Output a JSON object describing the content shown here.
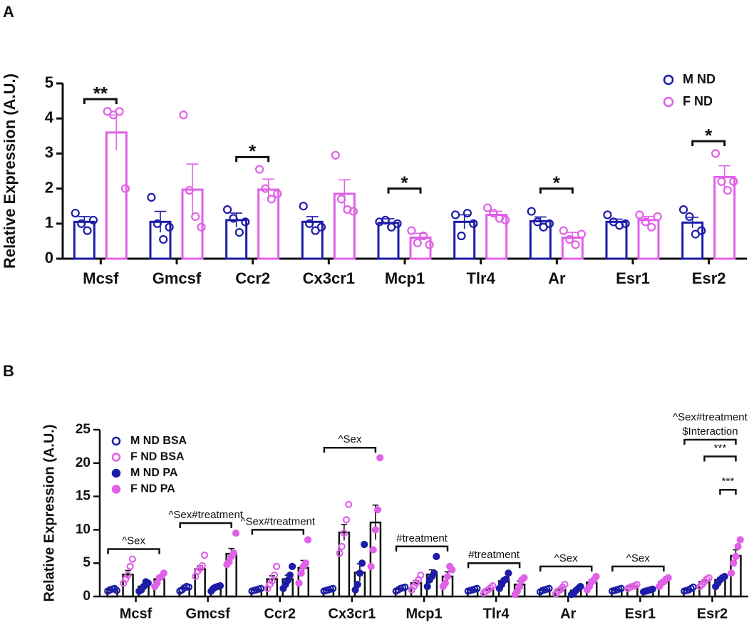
{
  "chart_data": [
    {
      "type": "bar",
      "panel": "A",
      "ylabel": "Relative Expression (A.U.)",
      "categories": [
        "Mcsf",
        "Gmcsf",
        "Ccr2",
        "Cx3cr1",
        "Mcp1",
        "Tlr4",
        "Ar",
        "Esr1",
        "Esr2"
      ],
      "ylim": [
        0,
        5
      ],
      "yticks": [
        0,
        1,
        2,
        3,
        4,
        5
      ],
      "legend": "upper right",
      "bar_edgecolor": "series",
      "series": [
        {
          "name": "M ND",
          "color": "#1c1ca8",
          "marker": "open",
          "values": [
            1.05,
            1.05,
            1.1,
            1.05,
            1.02,
            1.05,
            1.07,
            1.05,
            1.03
          ],
          "errors": [
            0.15,
            0.3,
            0.2,
            0.15,
            0.12,
            0.2,
            0.12,
            0.08,
            0.15
          ],
          "points": [
            [
              1.3,
              1.0,
              0.8,
              1.1
            ],
            [
              1.75,
              1.0,
              0.55,
              0.9
            ],
            [
              1.4,
              1.15,
              0.75,
              1.05
            ],
            [
              1.5,
              1.0,
              0.8,
              0.9
            ],
            [
              1.05,
              1.1,
              0.9,
              1.0
            ],
            [
              1.25,
              0.65,
              1.3,
              1.0
            ],
            [
              1.35,
              1.05,
              0.9,
              1.0
            ],
            [
              1.25,
              1.05,
              0.95,
              1.0
            ],
            [
              1.4,
              1.2,
              0.7,
              0.8
            ]
          ]
        },
        {
          "name": "F ND",
          "color": "#e060e8",
          "marker": "open",
          "values": [
            3.6,
            1.97,
            1.97,
            1.85,
            0.6,
            1.25,
            0.6,
            1.1,
            2.33
          ],
          "errors": [
            0.5,
            0.73,
            0.3,
            0.4,
            0.12,
            0.1,
            0.15,
            0.1,
            0.32
          ],
          "points": [
            [
              4.2,
              4.1,
              4.2,
              2.0
            ],
            [
              4.1,
              1.95,
              1.2,
              0.9
            ],
            [
              2.55,
              2.0,
              1.7,
              1.85
            ],
            [
              2.95,
              1.7,
              1.4,
              1.35
            ],
            [
              0.8,
              0.45,
              0.65,
              0.4
            ],
            [
              1.45,
              1.3,
              1.15,
              1.1
            ],
            [
              0.8,
              0.55,
              0.4,
              0.7
            ],
            [
              1.25,
              1.05,
              0.9,
              1.2
            ],
            [
              3.0,
              2.2,
              1.95,
              2.2
            ]
          ]
        }
      ],
      "annotations": [
        {
          "category": "Mcsf",
          "text": "**"
        },
        {
          "category": "Ccr2",
          "text": "*"
        },
        {
          "category": "Mcp1",
          "text": "*"
        },
        {
          "category": "Ar",
          "text": "*"
        },
        {
          "category": "Esr2",
          "text": "*"
        }
      ]
    },
    {
      "type": "bar",
      "panel": "B",
      "ylabel": "Relative Expression (A.U.)",
      "categories": [
        "Mcsf",
        "Gmcsf",
        "Ccr2",
        "Cx3cr1",
        "Mcp1",
        "Tlr4",
        "Ar",
        "Esr1",
        "Esr2"
      ],
      "ylim": [
        0,
        25
      ],
      "yticks": [
        0,
        5,
        10,
        15,
        20,
        25
      ],
      "legend": "upper left",
      "bar_edgecolor": "#111111",
      "series": [
        {
          "name": "M ND BSA",
          "color": "#1c1ca8",
          "marker": "open",
          "values": [
            1.0,
            1.2,
            1.0,
            1.0,
            1.1,
            1.0,
            1.0,
            1.0,
            1.0
          ],
          "errors": [
            0.1,
            0.15,
            0.08,
            0.08,
            0.12,
            0.08,
            0.1,
            0.08,
            0.12
          ],
          "points": [
            [
              0.8,
              1.0,
              1.1,
              1.2,
              0.9
            ],
            [
              0.8,
              1.0,
              1.3,
              1.5,
              1.4
            ],
            [
              0.8,
              0.9,
              1.0,
              1.1,
              1.2
            ],
            [
              0.8,
              0.9,
              1.0,
              1.1,
              1.2
            ],
            [
              0.8,
              1.0,
              1.2,
              1.3,
              1.4
            ],
            [
              0.8,
              0.9,
              1.0,
              1.1,
              1.2
            ],
            [
              0.7,
              0.9,
              1.0,
              1.1,
              1.2
            ],
            [
              0.8,
              0.9,
              1.0,
              1.1,
              1.2
            ],
            [
              0.8,
              0.9,
              1.0,
              1.2,
              1.4
            ]
          ]
        },
        {
          "name": "F ND BSA",
          "color": "#e060e8",
          "marker": "open",
          "values": [
            3.3,
            4.1,
            2.6,
            9.6,
            2.0,
            1.0,
            1.0,
            1.5,
            2.2
          ],
          "errors": [
            0.6,
            0.5,
            0.5,
            1.2,
            0.4,
            0.2,
            0.25,
            0.1,
            0.25
          ],
          "points": [
            [
              2.0,
              2.6,
              3.2,
              4.5,
              5.6
            ],
            [
              3.0,
              3.8,
              4.2,
              4.6,
              6.2
            ],
            [
              1.2,
              1.8,
              2.3,
              3.2,
              4.5
            ],
            [
              6.5,
              7.5,
              9.5,
              11.5,
              13.8
            ],
            [
              1.0,
              1.5,
              2.0,
              2.5,
              3.2
            ],
            [
              0.5,
              0.8,
              1.0,
              1.3,
              1.6
            ],
            [
              0.4,
              0.8,
              1.0,
              1.4,
              1.8
            ],
            [
              1.2,
              1.4,
              1.5,
              1.6,
              1.8
            ],
            [
              1.5,
              1.8,
              2.2,
              2.6,
              2.8
            ]
          ]
        },
        {
          "name": "M ND PA",
          "color": "#1c1ca8",
          "marker": "filled",
          "values": [
            1.5,
            1.3,
            2.6,
            3.6,
            3.3,
            2.3,
            0.9,
            0.9,
            2.5
          ],
          "errors": [
            0.3,
            0.15,
            0.6,
            1.3,
            0.7,
            0.35,
            0.25,
            0.08,
            0.3
          ],
          "points": [
            [
              0.8,
              1.0,
              1.5,
              2.2,
              2.0
            ],
            [
              0.8,
              1.2,
              1.4,
              1.5,
              1.6
            ],
            [
              1.2,
              1.8,
              2.4,
              3.2,
              4.5
            ],
            [
              1.0,
              1.8,
              3.5,
              5.0,
              7.8
            ],
            [
              1.5,
              2.5,
              3.0,
              3.5,
              6.0
            ],
            [
              1.2,
              1.8,
              2.4,
              2.6,
              3.5
            ],
            [
              0.3,
              0.5,
              0.9,
              1.2,
              1.5
            ],
            [
              0.7,
              0.8,
              0.9,
              1.0,
              1.1
            ],
            [
              1.5,
              2.0,
              2.5,
              2.8,
              3.0
            ]
          ]
        },
        {
          "name": "F ND PA",
          "color": "#e060e8",
          "marker": "filled",
          "values": [
            2.6,
            6.4,
            4.3,
            11.1,
            3.0,
            1.8,
            2.1,
            2.2,
            6.1
          ],
          "errors": [
            0.4,
            0.8,
            1.1,
            2.6,
            0.7,
            0.5,
            0.4,
            0.3,
            0.9
          ],
          "points": [
            [
              1.5,
              2.0,
              2.8,
              3.0,
              3.5
            ],
            [
              4.8,
              5.2,
              6.0,
              6.5,
              9.5
            ],
            [
              2.0,
              3.5,
              4.5,
              5.0,
              8.5
            ],
            [
              4.5,
              7.0,
              10.0,
              13.0,
              20.8
            ],
            [
              1.5,
              2.0,
              3.0,
              4.5,
              4.0
            ],
            [
              0.3,
              0.8,
              1.5,
              2.5,
              2.8
            ],
            [
              1.0,
              1.5,
              2.2,
              2.5,
              3.0
            ],
            [
              1.5,
              2.0,
              2.2,
              2.6,
              2.8
            ],
            [
              3.5,
              5.0,
              6.0,
              7.5,
              8.5
            ]
          ]
        }
      ],
      "annotations": [
        {
          "category": "Mcsf",
          "text": "^Sex"
        },
        {
          "category": "Gmcsf",
          "text": "^Sex#treatment"
        },
        {
          "category": "Ccr2",
          "text": "^Sex#treatment"
        },
        {
          "category": "Cx3cr1",
          "text": "^Sex"
        },
        {
          "category": "Mcp1",
          "text": "#treatment"
        },
        {
          "category": "Tlr4",
          "text": "#treatment"
        },
        {
          "category": "Ar",
          "text": "^Sex"
        },
        {
          "category": "Esr1",
          "text": "^Sex"
        },
        {
          "category": "Esr2",
          "text": [
            "^Sex#treatment",
            "$Interaction"
          ]
        },
        {
          "category": "Esr2",
          "text": "***",
          "between": [
            "F ND BSA",
            "F ND PA"
          ]
        },
        {
          "category": "Esr2",
          "text": "***",
          "between": [
            "M ND PA",
            "F ND PA"
          ]
        }
      ]
    }
  ]
}
